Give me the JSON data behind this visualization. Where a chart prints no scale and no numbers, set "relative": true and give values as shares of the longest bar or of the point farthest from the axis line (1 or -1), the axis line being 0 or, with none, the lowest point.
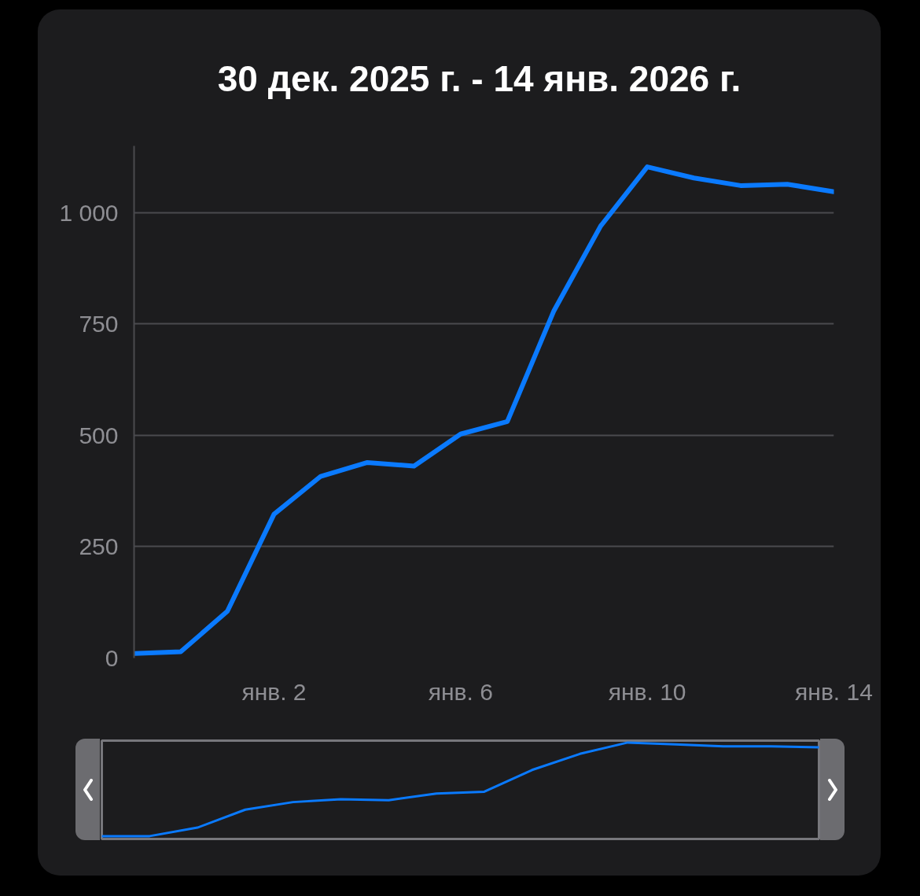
{
  "chart_data": [
    {
      "type": "line",
      "title": "30 дек. 2025 г. - 14 янв. 2026 г.",
      "x": [
        "2025-12-30",
        "2025-12-31",
        "2026-01-01",
        "2026-01-02",
        "2026-01-03",
        "2026-01-04",
        "2026-01-05",
        "2026-01-06",
        "2026-01-07",
        "2026-01-08",
        "2026-01-09",
        "2026-01-10",
        "2026-01-11",
        "2026-01-12",
        "2026-01-13",
        "2026-01-14"
      ],
      "series": [
        {
          "color": "#0a7aff",
          "values": [
            10,
            14,
            105,
            323,
            408,
            439,
            431,
            503,
            531,
            780,
            970,
            1103,
            1078,
            1061,
            1064,
            1047
          ]
        }
      ],
      "xlim": [
        "2025-12-30",
        "2026-01-14"
      ],
      "xticks": [
        {
          "value": "2026-01-02",
          "label": "янв. 2"
        },
        {
          "value": "2026-01-06",
          "label": "янв. 6"
        },
        {
          "value": "2026-01-10",
          "label": "янв. 10"
        },
        {
          "value": "2026-01-14",
          "label": "янв. 14"
        }
      ],
      "ylim": [
        0,
        1150
      ],
      "yticks": [
        0,
        250,
        500,
        750,
        {
          "value": 1000,
          "label": "1 000"
        }
      ],
      "grid": "y"
    },
    {
      "type": "line",
      "relative": true,
      "categories": [
        null,
        null,
        null,
        null,
        null,
        null,
        null,
        null,
        null,
        null,
        null,
        null,
        null,
        null,
        null,
        null
      ],
      "series": [
        {
          "color": "#0a7aff",
          "values": [
            0.01,
            0.01,
            0.1,
            0.29,
            0.37,
            0.4,
            0.39,
            0.46,
            0.48,
            0.71,
            0.88,
            1,
            0.98,
            0.96,
            0.96,
            0.95
          ]
        }
      ]
    }
  ]
}
